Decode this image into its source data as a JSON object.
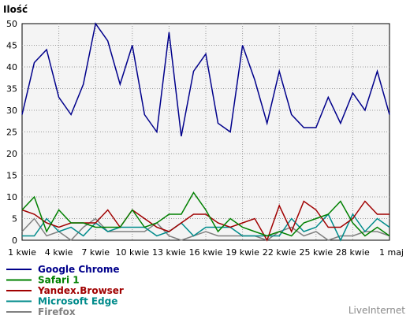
{
  "chart_data": {
    "type": "line",
    "ylabel": "Ilość",
    "ylim": [
      0,
      50
    ],
    "yticks": [
      0,
      5,
      10,
      15,
      20,
      25,
      30,
      35,
      40,
      45,
      50
    ],
    "grid": true,
    "legend_position": "bottom-left",
    "x": [
      "1 kwie",
      "2 kwie",
      "3 kwie",
      "4 kwie",
      "5 kwie",
      "6 kwie",
      "7 kwie",
      "8 kwie",
      "9 kwie",
      "10 kwie",
      "11 kwie",
      "12 kwie",
      "13 kwie",
      "14 kwie",
      "15 kwie",
      "16 kwie",
      "17 kwie",
      "18 kwie",
      "19 kwie",
      "20 kwie",
      "21 kwie",
      "22 kwie",
      "23 kwie",
      "24 kwie",
      "25 kwie",
      "26 kwie",
      "27 kwie",
      "28 kwie",
      "29 kwie",
      "30 kwie",
      "1 maj"
    ],
    "xtick_labels": [
      "1 kwie",
      "4 kwie",
      "7 kwie",
      "10 kwie",
      "13 kwie",
      "16 kwie",
      "19 kwie",
      "22 kwie",
      "25 kwie",
      "28 kwie",
      "1 maj"
    ],
    "series": [
      {
        "name": "Google Chrome",
        "color": "#00008b",
        "values": [
          29,
          41,
          44,
          33,
          29,
          36,
          50,
          46,
          36,
          45,
          29,
          25,
          48,
          24,
          39,
          43,
          27,
          25,
          45,
          37,
          27,
          39,
          29,
          26,
          26,
          33,
          27,
          34,
          30,
          39,
          29
        ]
      },
      {
        "name": "Safari 1",
        "color": "#008000",
        "values": [
          7,
          10,
          2,
          7,
          4,
          4,
          3,
          3,
          3,
          7,
          3,
          4,
          6,
          6,
          11,
          7,
          2,
          5,
          3,
          2,
          1,
          2,
          1,
          4,
          5,
          6,
          9,
          4,
          1,
          3,
          1
        ]
      },
      {
        "name": "Yandex.Browser",
        "color": "#a00000",
        "values": [
          7,
          6,
          4,
          3,
          4,
          4,
          4,
          7,
          3,
          7,
          5,
          3,
          2,
          4,
          6,
          6,
          4,
          3,
          4,
          5,
          0,
          8,
          2,
          9,
          7,
          3,
          3,
          5,
          9,
          6,
          6
        ]
      },
      {
        "name": "Microsoft Edge",
        "color": "#008b8b",
        "values": [
          1,
          1,
          5,
          2,
          3,
          1,
          4,
          2,
          3,
          3,
          3,
          1,
          2,
          4,
          1,
          3,
          3,
          3,
          1,
          1,
          1,
          1,
          5,
          2,
          3,
          6,
          0,
          6,
          2,
          5,
          3
        ]
      },
      {
        "name": "Firefox",
        "color": "#808080",
        "values": [
          2,
          5,
          1,
          2,
          0,
          3,
          5,
          2,
          2,
          2,
          2,
          4,
          1,
          0,
          1,
          2,
          1,
          1,
          1,
          1,
          0,
          2,
          3,
          1,
          2,
          0,
          1,
          1,
          2,
          2,
          1
        ]
      }
    ]
  },
  "brand": "LiveInternet"
}
